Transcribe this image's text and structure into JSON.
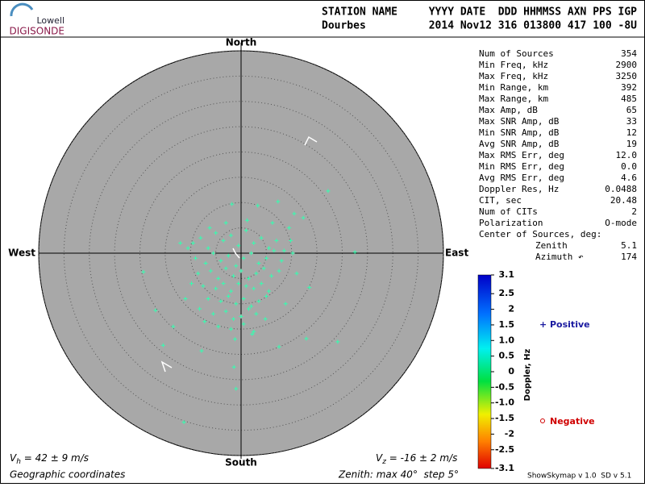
{
  "chart_data": {
    "type": "skymap",
    "logo": {
      "top": "Lowell",
      "bottom": "DIGISONDE"
    },
    "header": {
      "label_left": "STATION NAME",
      "label_right": "YYYY DATE  DDD HHMMSS AXN PPS IGP",
      "station": "Dourbes",
      "values": "2014 Nov12 316 013800 417 100 -8U"
    },
    "directions": {
      "north": "North",
      "south": "South",
      "east": "East",
      "west": "West"
    },
    "rlim": [
      0,
      40
    ],
    "rticks": [
      5,
      10,
      15,
      20,
      25,
      30,
      35,
      40
    ],
    "stats": [
      [
        "Num of Sources",
        "354"
      ],
      [
        "Min Freq, kHz",
        "2900"
      ],
      [
        "Max Freq, kHz",
        "3250"
      ],
      [
        "Min Range, km",
        "392"
      ],
      [
        "Max Range, km",
        "485"
      ],
      [
        "Max Amp, dB",
        "65"
      ],
      [
        "Max SNR Amp, dB",
        "33"
      ],
      [
        "Min SNR Amp, dB",
        "12"
      ],
      [
        "Avg SNR Amp, dB",
        "19"
      ],
      [
        "Max RMS Err, deg",
        "12.0"
      ],
      [
        "Min RMS Err, deg",
        "0.0"
      ],
      [
        "Avg RMS Err, deg",
        "4.6"
      ],
      [
        "Doppler Res, Hz",
        "0.0488"
      ],
      [
        "CIT, sec",
        "20.48"
      ],
      [
        "Num of CITs",
        "2"
      ],
      [
        "Polarization",
        "O-mode"
      ]
    ],
    "center_label": "Center of Sources, deg:",
    "center": [
      [
        "Zenith",
        "5.1"
      ],
      [
        "Azimuth ↶",
        "174"
      ]
    ],
    "colorbar": {
      "label": "Doppler, Hz",
      "clim": [
        -3.1,
        3.1
      ],
      "ticks": [
        3.1,
        2.5,
        2,
        1.5,
        {
          "value": 1,
          "label": "1.0"
        },
        0.5,
        0,
        -0.5,
        {
          "value": -1,
          "label": "-1.0"
        },
        -1.5,
        -2,
        -2.5,
        -3.1
      ]
    },
    "legend": {
      "positive": "Positive",
      "negative": "Negative"
    },
    "vh": {
      "symbol": "V",
      "sub": "h",
      "text": " = 42 ± 9 m/s"
    },
    "vz": {
      "symbol": "V",
      "sub": "z",
      "text": " = -16 ± 2 m/s"
    },
    "coords": "Geographic coordinates",
    "zenith_note": "Zenith: max 40°  step 5°",
    "version": "ShowSkymap v 1.0  SD v 5.1",
    "series": [
      {
        "name": "Positive",
        "color": "#33ffb0",
        "x": [
          17.2,
          19.1,
          -11.3,
          -1,
          -15.4,
          -19.3,
          -1.8,
          10.5,
          12.3,
          13.5,
          12.9,
          7.5,
          -1.4,
          -7.8,
          -13.4,
          -16.9,
          22.5,
          10.2,
          7.3,
          3.3,
          -9.5,
          -8,
          -6.5,
          -5,
          -3.5,
          -2,
          -0.5,
          1,
          2.5,
          4,
          5.5,
          7,
          8.5,
          -9,
          -7,
          -5.5,
          -4,
          -2.5,
          -1,
          0.5,
          2,
          3.5,
          5,
          6.5,
          8,
          -8.5,
          -6,
          -4.5,
          -3,
          -1.5,
          0,
          1.5,
          3,
          4.5,
          6,
          7.5,
          -7.5,
          -5,
          -3.5,
          -2,
          -0.5,
          1,
          2.5,
          4,
          5.5,
          -6.5,
          -4,
          -2.5,
          -1,
          0.5,
          2,
          3.5,
          5,
          -5.5,
          -3,
          -1.5,
          0,
          1.5,
          3,
          -4.5,
          -2,
          0.5,
          2.5,
          -9.8,
          -10.5,
          9.5,
          11,
          -11,
          8.8,
          -3,
          1.2,
          -6.2,
          6.2,
          -8.2,
          4.8,
          -1.2,
          2.2,
          -7.2,
          9.8,
          -12
        ],
        "y": [
          12.3,
          -17.5,
          -33.4,
          -26.8,
          -18.2,
          -3.7,
          9.7,
          7.8,
          7,
          -6.8,
          -16.9,
          -18.5,
          -22.5,
          -19.3,
          -14.5,
          -11.3,
          0.2,
          0,
          10.2,
          9.4,
          2,
          3,
          1,
          4,
          2.5,
          3.5,
          1.5,
          4.5,
          2,
          3,
          1,
          2.5,
          0.5,
          -1,
          -2,
          0,
          -1.5,
          -0.5,
          -2.5,
          -1,
          0,
          -2,
          -1,
          0.5,
          -1.5,
          -4,
          -3.5,
          -5,
          -3,
          -4.5,
          -3.5,
          -5,
          -4,
          -3,
          -4.5,
          -3.5,
          -6.5,
          -7,
          -6,
          -7.5,
          -6,
          -6.5,
          -7,
          -6,
          -7.5,
          -9,
          -9.5,
          -8.5,
          -10,
          -9,
          -10.5,
          -9.5,
          -8.5,
          -12,
          -11.5,
          -13,
          -12.5,
          -11,
          -12,
          -14.5,
          -15,
          -14,
          -15.5,
          -6,
          1,
          5,
          -4,
          -9,
          -10,
          6,
          6.5,
          5,
          6,
          -11,
          -13,
          -17,
          -16,
          -13.5,
          2.5,
          2
        ]
      }
    ]
  }
}
